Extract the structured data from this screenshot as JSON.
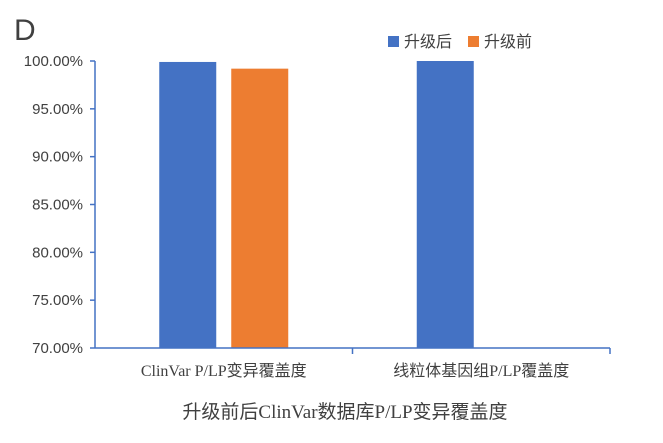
{
  "panel_label": "D",
  "chart_data": {
    "type": "bar",
    "title": "",
    "xlabel": "升级前后ClinVar数据库P/LP变异覆盖度",
    "ylabel": "",
    "categories": [
      "ClinVar P/LP变异覆盖度",
      "线粒体基因组P/LP覆盖度"
    ],
    "series": [
      {
        "name": "升级后",
        "color": "#4472C4",
        "values": [
          99.9,
          100.0
        ]
      },
      {
        "name": "升级前",
        "color": "#ED7D31",
        "values": [
          99.2,
          null
        ]
      }
    ],
    "ylim": [
      70,
      100
    ],
    "yticks": [
      "70.00%",
      "75.00%",
      "80.00%",
      "85.00%",
      "90.00%",
      "95.00%",
      "100.00%"
    ],
    "grid": false,
    "legend_position": "top-right"
  }
}
